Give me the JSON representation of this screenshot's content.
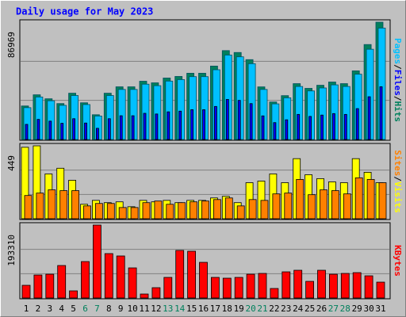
{
  "chart_data": {
    "type": "bar",
    "title": "Daily usage for May 2023",
    "categories": [
      "1",
      "2",
      "3",
      "4",
      "5",
      "6",
      "7",
      "8",
      "9",
      "10",
      "11",
      "12",
      "13",
      "14",
      "15",
      "16",
      "17",
      "18",
      "19",
      "20",
      "21",
      "22",
      "23",
      "24",
      "25",
      "26",
      "27",
      "28",
      "29",
      "30",
      "31"
    ],
    "weekend_categories": [
      "6",
      "7",
      "13",
      "14",
      "20",
      "21",
      "27",
      "28"
    ],
    "weekend_color": "#00805c",
    "label_color": "#000000",
    "legend_separator": "/",
    "panels": [
      {
        "ylim": [
          0,
          86969
        ],
        "yticks": [
          86969
        ],
        "series": [
          {
            "name": "Hits",
            "color": "#00805c",
            "values": [
              24848,
              33130,
              30172,
              26622,
              34313,
              27214,
              18340,
              34313,
              39046,
              39046,
              43187,
              42004,
              45553,
              46737,
              49103,
              49103,
              54427,
              65900,
              64500,
              59200,
              39000,
              27800,
              32500,
              41400,
              37900,
              40200,
              42600,
              41400,
              50900,
              70400,
              86969
            ]
          },
          {
            "name": "Files",
            "color": "#0000ff",
            "values": [
              11200,
              14900,
              13600,
              12000,
              15400,
              12200,
              8300,
              15400,
              17600,
              17600,
              19400,
              18900,
              20500,
              21000,
              22100,
              22100,
              24500,
              29700,
              29000,
              26600,
              17500,
              12500,
              14600,
              18600,
              17100,
              18100,
              19200,
              18600,
              22900,
              31700,
              39100
            ]
          },
          {
            "name": "Pages",
            "color": "#00c0ff",
            "values": [
              23600,
              31500,
              28700,
              25300,
              32600,
              25900,
              17400,
              32600,
              37100,
              37100,
              41000,
              39900,
              43300,
              44400,
              46600,
              46600,
              51700,
              62600,
              61300,
              56200,
              37100,
              26400,
              30900,
              39300,
              36000,
              38200,
              40500,
              39300,
              48400,
              66900,
              82600
            ]
          }
        ]
      },
      {
        "ylim": [
          0,
          449
        ],
        "yticks": [
          449
        ],
        "series": [
          {
            "name": "Visits",
            "color": "#ffff00",
            "values": [
              440,
              449,
              276,
              311,
              237,
              89,
              113,
              99,
              104,
              74,
              113,
              104,
              113,
              99,
              113,
              113,
              128,
              138,
              99,
              222,
              232,
              276,
              222,
              370,
              271,
              247,
              227,
              222,
              370,
              286,
              222
            ]
          },
          {
            "name": "Sites",
            "color": "#ff8000",
            "values": [
              143,
              158,
              178,
              173,
              173,
              79,
              94,
              94,
              69,
              69,
              99,
              109,
              89,
              99,
              104,
              109,
              118,
              128,
              79,
              118,
              113,
              153,
              158,
              242,
              148,
              178,
              173,
              153,
              252,
              242,
              222
            ]
          }
        ]
      },
      {
        "ylim": [
          0,
          193310
        ],
        "yticks": [
          193310
        ],
        "series": [
          {
            "name": "KBytes",
            "color": "#ff0000",
            "values": [
              33600,
              60900,
              63000,
              86100,
              18900,
              96600,
              193310,
              117700,
              111400,
              79800,
              10500,
              27300,
              54600,
              126100,
              124000,
              94500,
              54600,
              52500,
              54600,
              63000,
              65100,
              25200,
              69300,
              73500,
              44100,
              73500,
              63000,
              65100,
              67200,
              58800,
              42000
            ]
          }
        ]
      }
    ]
  }
}
